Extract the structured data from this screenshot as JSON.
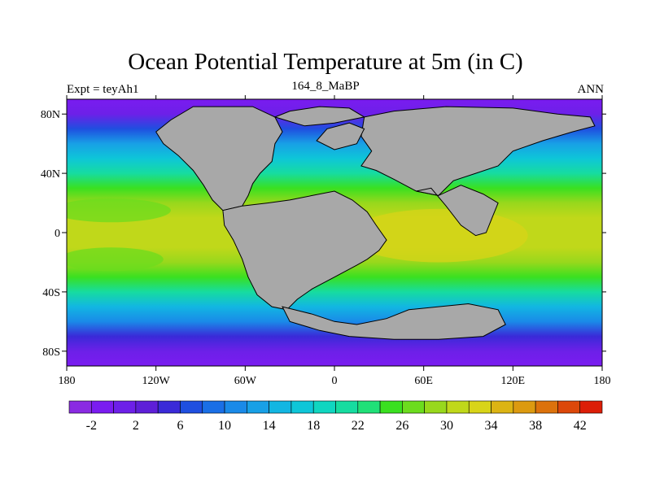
{
  "chart_data": {
    "type": "heatmap",
    "title": "Ocean Potential Temperature at 5m (in C)",
    "left_label": "Expt = teyAh1",
    "center_label": "164_8_MaBP",
    "right_label": "ANN",
    "x_range": [
      -180,
      180
    ],
    "y_range": [
      -90,
      90
    ],
    "x_ticks": [
      {
        "value": -180,
        "label": "180"
      },
      {
        "value": -120,
        "label": "120W"
      },
      {
        "value": -60,
        "label": "60W"
      },
      {
        "value": 0,
        "label": "0"
      },
      {
        "value": 60,
        "label": "60E"
      },
      {
        "value": 120,
        "label": "120E"
      },
      {
        "value": 180,
        "label": "180"
      }
    ],
    "y_ticks": [
      {
        "value": 80,
        "label": "80N"
      },
      {
        "value": 40,
        "label": "40N"
      },
      {
        "value": 0,
        "label": "0"
      },
      {
        "value": -40,
        "label": "40S"
      },
      {
        "value": -80,
        "label": "80S"
      }
    ],
    "colorbar": {
      "levels": [
        -4,
        -2,
        0,
        2,
        4,
        6,
        8,
        10,
        12,
        14,
        16,
        18,
        20,
        22,
        24,
        26,
        28,
        30,
        32,
        34,
        36,
        38,
        40,
        42,
        44
      ],
      "labels": [
        -2,
        2,
        6,
        10,
        14,
        18,
        22,
        26,
        30,
        34,
        38,
        42
      ],
      "colors": [
        "#8a2be2",
        "#7a1cf0",
        "#6d20e8",
        "#5e1fd8",
        "#3a2ad8",
        "#1f4fe0",
        "#1a6fe6",
        "#1a8ae8",
        "#18a0e6",
        "#12b6e2",
        "#0ec6d8",
        "#10d6c0",
        "#16dca0",
        "#20e078",
        "#3ae020",
        "#6cdc1e",
        "#98d81c",
        "#c0d81a",
        "#d8d418",
        "#dcb414",
        "#dc9a10",
        "#dc720c",
        "#dc480a",
        "#dc1e08"
      ]
    },
    "land_color": "#a8a8a8",
    "ocean_sst_profile": [
      {
        "lat": 90,
        "value": -2
      },
      {
        "lat": 80,
        "value": 0
      },
      {
        "lat": 70,
        "value": 6
      },
      {
        "lat": 60,
        "value": 12
      },
      {
        "lat": 50,
        "value": 17
      },
      {
        "lat": 40,
        "value": 21
      },
      {
        "lat": 30,
        "value": 25
      },
      {
        "lat": 20,
        "value": 28
      },
      {
        "lat": 10,
        "value": 30
      },
      {
        "lat": 0,
        "value": 31
      },
      {
        "lat": -10,
        "value": 31
      },
      {
        "lat": -20,
        "value": 29
      },
      {
        "lat": -30,
        "value": 25
      },
      {
        "lat": -40,
        "value": 20
      },
      {
        "lat": -50,
        "value": 15
      },
      {
        "lat": -60,
        "value": 10
      },
      {
        "lat": -70,
        "value": 4
      },
      {
        "lat": -80,
        "value": 0
      },
      {
        "lat": -90,
        "value": -2
      }
    ],
    "land_polygons": [
      {
        "name": "north-america",
        "points": [
          [
            -95,
            85
          ],
          [
            -55,
            85
          ],
          [
            -40,
            78
          ],
          [
            -35,
            68
          ],
          [
            -40,
            60
          ],
          [
            -42,
            48
          ],
          [
            -50,
            40
          ],
          [
            -55,
            33
          ],
          [
            -58,
            25
          ],
          [
            -62,
            18
          ],
          [
            -75,
            15
          ],
          [
            -82,
            22
          ],
          [
            -88,
            32
          ],
          [
            -95,
            42
          ],
          [
            -105,
            52
          ],
          [
            -115,
            60
          ],
          [
            -120,
            68
          ],
          [
            -110,
            76
          ],
          [
            -95,
            85
          ]
        ]
      },
      {
        "name": "south-america-africa",
        "points": [
          [
            -75,
            15
          ],
          [
            -62,
            18
          ],
          [
            -45,
            20
          ],
          [
            -30,
            22
          ],
          [
            -15,
            25
          ],
          [
            0,
            28
          ],
          [
            12,
            22
          ],
          [
            22,
            14
          ],
          [
            28,
            5
          ],
          [
            35,
            -5
          ],
          [
            30,
            -12
          ],
          [
            22,
            -18
          ],
          [
            15,
            -22
          ],
          [
            0,
            -30
          ],
          [
            -15,
            -38
          ],
          [
            -25,
            -45
          ],
          [
            -32,
            -52
          ],
          [
            -42,
            -50
          ],
          [
            -52,
            -42
          ],
          [
            -58,
            -30
          ],
          [
            -62,
            -18
          ],
          [
            -68,
            -5
          ],
          [
            -74,
            5
          ],
          [
            -75,
            15
          ]
        ]
      },
      {
        "name": "eurasia",
        "points": [
          [
            18,
            45
          ],
          [
            25,
            55
          ],
          [
            18,
            65
          ],
          [
            20,
            78
          ],
          [
            40,
            82
          ],
          [
            75,
            85
          ],
          [
            120,
            84
          ],
          [
            150,
            80
          ],
          [
            172,
            78
          ],
          [
            175,
            72
          ],
          [
            160,
            68
          ],
          [
            140,
            62
          ],
          [
            120,
            55
          ],
          [
            110,
            45
          ],
          [
            95,
            40
          ],
          [
            80,
            35
          ],
          [
            70,
            25
          ],
          [
            55,
            28
          ],
          [
            40,
            36
          ],
          [
            28,
            42
          ],
          [
            18,
            45
          ]
        ]
      },
      {
        "name": "india",
        "points": [
          [
            55,
            28
          ],
          [
            65,
            30
          ],
          [
            75,
            18
          ],
          [
            85,
            5
          ],
          [
            95,
            -2
          ],
          [
            102,
            0
          ],
          [
            106,
            10
          ],
          [
            110,
            20
          ],
          [
            100,
            26
          ],
          [
            85,
            32
          ],
          [
            70,
            25
          ],
          [
            55,
            28
          ]
        ]
      },
      {
        "name": "antarctica-australia",
        "points": [
          [
            -35,
            -50
          ],
          [
            -15,
            -55
          ],
          [
            0,
            -60
          ],
          [
            15,
            -62
          ],
          [
            35,
            -58
          ],
          [
            50,
            -52
          ],
          [
            70,
            -50
          ],
          [
            90,
            -48
          ],
          [
            110,
            -52
          ],
          [
            115,
            -62
          ],
          [
            100,
            -70
          ],
          [
            70,
            -72
          ],
          [
            40,
            -72
          ],
          [
            10,
            -70
          ],
          [
            -10,
            -66
          ],
          [
            -30,
            -60
          ],
          [
            -35,
            -50
          ]
        ]
      },
      {
        "name": "greenland-north",
        "points": [
          [
            -40,
            78
          ],
          [
            -30,
            82
          ],
          [
            -10,
            85
          ],
          [
            10,
            84
          ],
          [
            20,
            78
          ],
          [
            0,
            74
          ],
          [
            -20,
            72
          ],
          [
            -40,
            78
          ]
        ]
      },
      {
        "name": "europe-north",
        "points": [
          [
            -12,
            62
          ],
          [
            -5,
            70
          ],
          [
            10,
            74
          ],
          [
            20,
            70
          ],
          [
            15,
            60
          ],
          [
            0,
            56
          ],
          [
            -12,
            62
          ]
        ]
      }
    ]
  }
}
